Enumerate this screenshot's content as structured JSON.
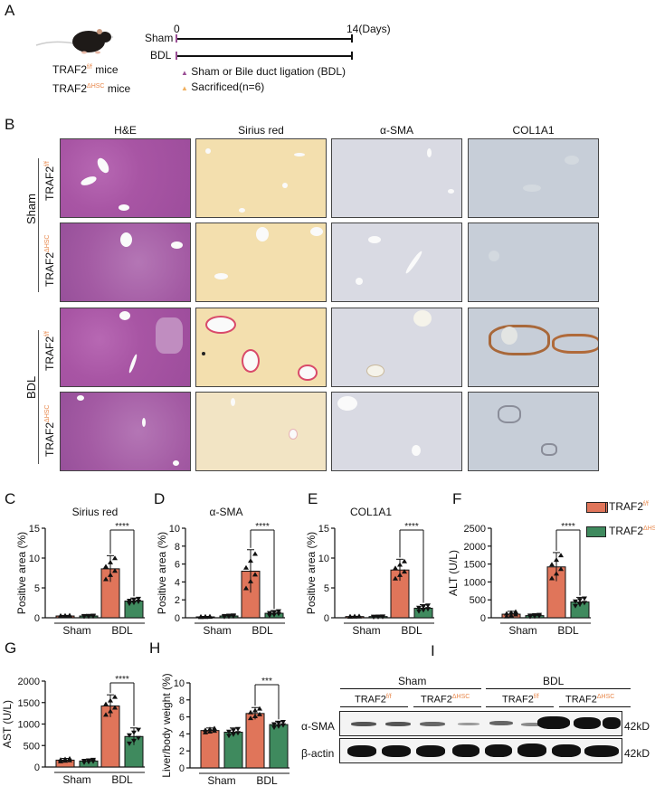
{
  "panels": {
    "A": {
      "letter": "A",
      "mouse_label_1": "TRAF2",
      "mouse_label_1_sup": "f/f",
      "mouse_label_1_suffix": " mice",
      "mouse_label_2": "TRAF2",
      "mouse_label_2_sup": "ΔHSC",
      "mouse_label_2_suffix": " mice",
      "timeline": {
        "start": "0",
        "end": "14(Days)",
        "rows": [
          "Sham",
          "BDL"
        ]
      },
      "legend": [
        {
          "marker_color": "#9b4f96",
          "label": "Sham or Bile duct ligation (BDL)"
        },
        {
          "marker_color": "#f0b060",
          "label": "Sacrificed(n=6)"
        }
      ]
    },
    "B": {
      "letter": "B",
      "columns": [
        "H&E",
        "Sirius red",
        "α-SMA",
        "COL1A1"
      ],
      "groups": [
        "Sham",
        "BDL"
      ],
      "rows": [
        {
          "label": "TRAF2",
          "sup": "f/f"
        },
        {
          "label": "TRAF2",
          "sup": "ΔHSC"
        },
        {
          "label": "TRAF2",
          "sup": "f/f"
        },
        {
          "label": "TRAF2",
          "sup": "ΔHSC"
        }
      ]
    },
    "legend": {
      "items": [
        {
          "label": "TRAF2",
          "sup": "f/f",
          "color": "#e0755a"
        },
        {
          "label": "TRAF2",
          "sup": "ΔHSC",
          "color": "#3f8a5e"
        }
      ]
    },
    "I": {
      "letter": "I",
      "groups": [
        "Sham",
        "BDL"
      ],
      "subgroups": [
        {
          "label": "TRAF2",
          "sup": "f/f"
        },
        {
          "label": "TRAF2",
          "sup": "ΔHSC"
        },
        {
          "label": "TRAF2",
          "sup": "f/f"
        },
        {
          "label": "TRAF2",
          "sup": "ΔHSC"
        }
      ],
      "blots": [
        {
          "label": "α-SMA",
          "size": "42kD"
        },
        {
          "label": "β-actin",
          "size": "42kD"
        }
      ]
    }
  },
  "chart_data": [
    {
      "id": "C",
      "letter": "C",
      "type": "bar",
      "title": "Sirius red",
      "ylabel": "Positive area (%)",
      "ylim": [
        0,
        15
      ],
      "yticks": [
        "0",
        "5",
        "10",
        "15"
      ],
      "categories": [
        "Sham",
        "BDL"
      ],
      "series": [
        {
          "name": "TRAF2 f/f",
          "values": [
            0.3,
            8.2
          ],
          "err": [
            0.1,
            2.2
          ]
        },
        {
          "name": "TRAF2 ΔHSC",
          "values": [
            0.3,
            2.8
          ],
          "err": [
            0.1,
            0.5
          ]
        }
      ],
      "significance": {
        "between": "BDL",
        "label": "****"
      }
    },
    {
      "id": "D",
      "letter": "D",
      "type": "bar",
      "title": "α-SMA",
      "ylabel": "Positive area (%)",
      "ylim": [
        0,
        10
      ],
      "yticks": [
        "0",
        "2",
        "4",
        "6",
        "8",
        "10"
      ],
      "categories": [
        "Sham",
        "BDL"
      ],
      "series": [
        {
          "name": "TRAF2 f/f",
          "values": [
            0.1,
            5.2
          ],
          "err": [
            0.05,
            2.4
          ]
        },
        {
          "name": "TRAF2 ΔHSC",
          "values": [
            0.2,
            0.5
          ],
          "err": [
            0.1,
            0.3
          ]
        }
      ],
      "significance": {
        "between": "BDL",
        "label": "****"
      }
    },
    {
      "id": "E",
      "letter": "E",
      "type": "bar",
      "title": "COL1A1",
      "ylabel": "Positive area (%)",
      "ylim": [
        0,
        15
      ],
      "yticks": [
        "0",
        "5",
        "10",
        "15"
      ],
      "categories": [
        "Sham",
        "BDL"
      ],
      "series": [
        {
          "name": "TRAF2 f/f",
          "values": [
            0.2,
            8.0
          ],
          "err": [
            0.05,
            1.8
          ]
        },
        {
          "name": "TRAF2 ΔHSC",
          "values": [
            0.2,
            1.6
          ],
          "err": [
            0.05,
            0.6
          ]
        }
      ],
      "significance": {
        "between": "BDL",
        "label": "****"
      }
    },
    {
      "id": "F",
      "letter": "F",
      "type": "bar",
      "title": "",
      "ylabel": "ALT (U/L)",
      "ylim": [
        0,
        2500
      ],
      "yticks": [
        "0",
        "500",
        "1000",
        "1500",
        "2000",
        "2500"
      ],
      "categories": [
        "Sham",
        "BDL"
      ],
      "series": [
        {
          "name": "TRAF2 f/f",
          "values": [
            100,
            1420
          ],
          "err": [
            80,
            400
          ]
        },
        {
          "name": "TRAF2 ΔHSC",
          "values": [
            60,
            440
          ],
          "err": [
            30,
            130
          ]
        }
      ],
      "significance": {
        "between": "BDL",
        "label": "****"
      }
    },
    {
      "id": "G",
      "letter": "G",
      "type": "bar",
      "title": "",
      "ylabel": "AST (U/L)",
      "ylim": [
        0,
        2000
      ],
      "yticks": [
        "0",
        "500",
        "1000",
        "1500",
        "2000"
      ],
      "categories": [
        "Sham",
        "BDL"
      ],
      "series": [
        {
          "name": "TRAF2 f/f",
          "values": [
            160,
            1420
          ],
          "err": [
            40,
            260
          ]
        },
        {
          "name": "TRAF2 ΔHSC",
          "values": [
            140,
            710
          ],
          "err": [
            40,
            200
          ]
        }
      ],
      "significance": {
        "between": "BDL",
        "label": "****"
      }
    },
    {
      "id": "H",
      "letter": "H",
      "type": "bar",
      "title": "",
      "ylabel": "Liver/body weight (%)",
      "ylim": [
        0,
        10
      ],
      "yticks": [
        "0",
        "2",
        "4",
        "6",
        "8",
        "10"
      ],
      "categories": [
        "Sham",
        "BDL"
      ],
      "series": [
        {
          "name": "TRAF2 f/f",
          "values": [
            4.4,
            6.4
          ],
          "err": [
            0.3,
            0.7
          ]
        },
        {
          "name": "TRAF2 ΔHSC",
          "values": [
            4.2,
            5.1
          ],
          "err": [
            0.5,
            0.4
          ]
        }
      ],
      "significance": {
        "between": "BDL",
        "label": "***"
      }
    }
  ]
}
